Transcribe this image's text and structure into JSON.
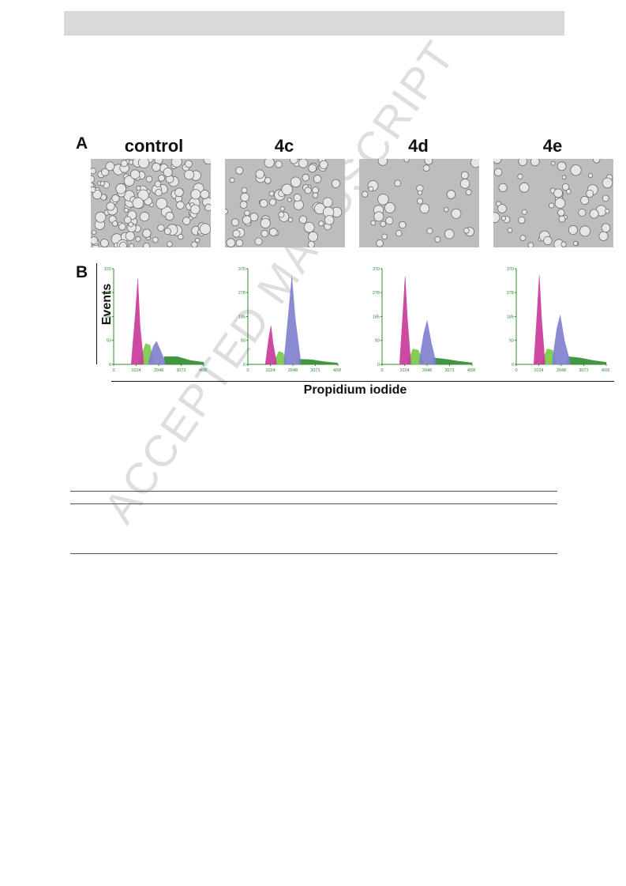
{
  "figure": {
    "panel_a_label": "A",
    "panel_b_label": "B",
    "columns": [
      "control",
      "4c",
      "4d",
      "4e"
    ],
    "y_axis_label": "Events",
    "x_axis_label": "Propidium iodide"
  },
  "watermark": "ACCEPTED MANUSCRIPT",
  "chart_data": [
    {
      "type": "area",
      "title": "control",
      "xlabel": "",
      "ylabel": "",
      "xticks": [
        "0",
        "1024",
        "2048",
        "3071",
        "4095"
      ],
      "yticks": [
        "0",
        "93",
        "185",
        "278",
        "370"
      ],
      "xlim": [
        0,
        4095
      ],
      "ylim": [
        0,
        370
      ],
      "series": [
        {
          "x": [
            800,
            1000,
            1100,
            1200,
            1350
          ],
          "values": [
            5,
            210,
            330,
            150,
            20
          ],
          "color": "#c8379a"
        },
        {
          "x": [
            1200,
            1450,
            1650,
            1800
          ],
          "values": [
            20,
            80,
            75,
            20
          ],
          "color": "#79c843"
        },
        {
          "x": [
            1600,
            1800,
            1950,
            2100,
            2350
          ],
          "values": [
            15,
            70,
            90,
            60,
            10
          ],
          "color": "#7f7fcf"
        },
        {
          "x": [
            2300,
            2900,
            3500,
            4095
          ],
          "values": [
            30,
            30,
            15,
            8
          ],
          "color": "#2e8b2e"
        }
      ]
    },
    {
      "type": "area",
      "title": "4c",
      "xlabel": "",
      "ylabel": "",
      "xticks": [
        "0",
        "1024",
        "2048",
        "3071",
        "4095"
      ],
      "yticks": [
        "0",
        "93",
        "185",
        "278",
        "370"
      ],
      "xlim": [
        0,
        4095
      ],
      "ylim": [
        0,
        370
      ],
      "series": [
        {
          "x": [
            800,
            950,
            1050,
            1150,
            1300
          ],
          "values": [
            5,
            100,
            150,
            80,
            10
          ],
          "color": "#c8379a"
        },
        {
          "x": [
            1200,
            1400,
            1600,
            1750
          ],
          "values": [
            10,
            50,
            45,
            15
          ],
          "color": "#79c843"
        },
        {
          "x": [
            1650,
            1850,
            2000,
            2150,
            2400
          ],
          "values": [
            20,
            200,
            340,
            180,
            15
          ],
          "color": "#7f7fcf"
        },
        {
          "x": [
            2300,
            2900,
            3500,
            4095
          ],
          "values": [
            20,
            18,
            10,
            5
          ],
          "color": "#2e8b2e"
        }
      ]
    },
    {
      "type": "area",
      "title": "4d",
      "xlabel": "",
      "ylabel": "",
      "xticks": [
        "0",
        "1024",
        "2048",
        "3071",
        "4095"
      ],
      "yticks": [
        "0",
        "93",
        "185",
        "278",
        "370"
      ],
      "xlim": [
        0,
        4095
      ],
      "ylim": [
        0,
        370
      ],
      "series": [
        {
          "x": [
            800,
            950,
            1050,
            1150,
            1300
          ],
          "values": [
            5,
            200,
            340,
            180,
            15
          ],
          "color": "#c8379a"
        },
        {
          "x": [
            1200,
            1400,
            1650,
            1850
          ],
          "values": [
            15,
            60,
            55,
            15
          ],
          "color": "#79c843"
        },
        {
          "x": [
            1700,
            1900,
            2050,
            2250,
            2450
          ],
          "values": [
            20,
            120,
            170,
            80,
            10
          ],
          "color": "#7f7fcf"
        },
        {
          "x": [
            2350,
            2900,
            3500,
            4095
          ],
          "values": [
            25,
            20,
            12,
            6
          ],
          "color": "#2e8b2e"
        }
      ]
    },
    {
      "type": "area",
      "title": "4e",
      "xlabel": "",
      "ylabel": "",
      "xticks": [
        "0",
        "1024",
        "2048",
        "3071",
        "4095"
      ],
      "yticks": [
        "0",
        "93",
        "185",
        "278",
        "370"
      ],
      "xlim": [
        0,
        4095
      ],
      "ylim": [
        0,
        370
      ],
      "series": [
        {
          "x": [
            800,
            950,
            1050,
            1150,
            1300
          ],
          "values": [
            5,
            200,
            345,
            180,
            15
          ],
          "color": "#c8379a"
        },
        {
          "x": [
            1200,
            1400,
            1650,
            1800
          ],
          "values": [
            15,
            60,
            55,
            15
          ],
          "color": "#79c843"
        },
        {
          "x": [
            1650,
            1850,
            2000,
            2200,
            2450
          ],
          "values": [
            20,
            140,
            190,
            90,
            10
          ],
          "color": "#7f7fcf"
        },
        {
          "x": [
            2350,
            2900,
            3500,
            4095
          ],
          "values": [
            30,
            25,
            15,
            8
          ],
          "color": "#2e8b2e"
        }
      ]
    }
  ]
}
